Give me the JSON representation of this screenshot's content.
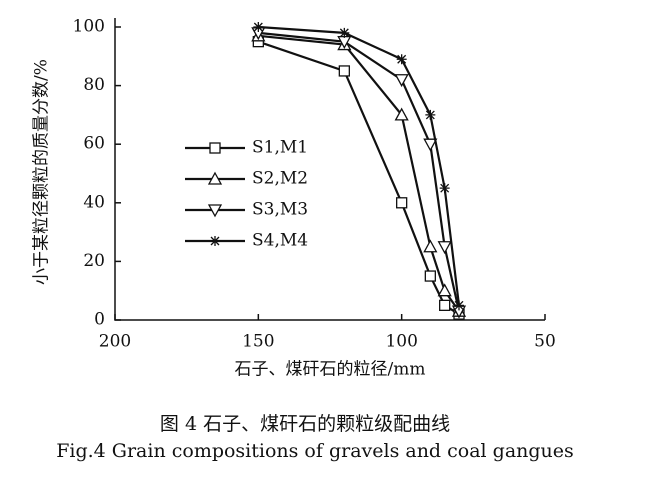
{
  "chart_data": {
    "type": "line",
    "y_label": "小于某粒径颗粒的质量分数/%",
    "x_label": "石子、煤矸石的粒径/mm",
    "caption": "图 4  石子、煤矸石的颗粒级配曲线",
    "caption_en": "Fig.4  Grain compositions of gravels and coal gangues",
    "x": [
      150,
      120,
      100,
      90,
      85,
      80
    ],
    "series": [
      {
        "name": "S1,M1",
        "color": "#111111",
        "marker": "square",
        "values": [
          95,
          85,
          40,
          15,
          5,
          2
        ]
      },
      {
        "name": "S2,M2",
        "color": "#111111",
        "marker": "triangle-up",
        "values": [
          97,
          94,
          70,
          25,
          10,
          3
        ]
      },
      {
        "name": "S3,M3",
        "color": "#111111",
        "marker": "triangle-down",
        "values": [
          98,
          95,
          82,
          60,
          25,
          3
        ]
      },
      {
        "name": "S4,M4",
        "color": "#111111",
        "marker": "asterisk",
        "values": [
          100,
          98,
          89,
          70,
          45,
          5
        ]
      }
    ],
    "xlim": [
      200,
      50
    ],
    "xticks": [
      200,
      150,
      100,
      50
    ],
    "ylim": [
      0,
      100
    ],
    "yticks": [
      0,
      20,
      40,
      60,
      80,
      100
    ]
  }
}
